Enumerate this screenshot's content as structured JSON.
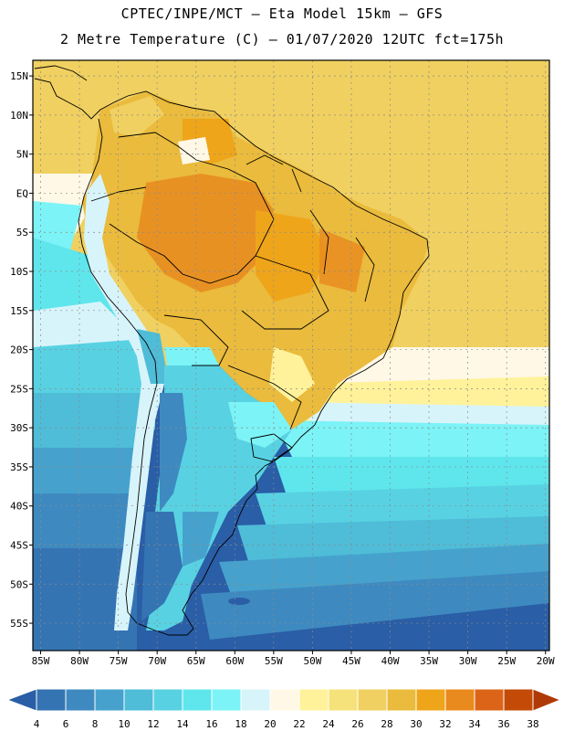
{
  "header": {
    "line1": "CPTEC/INPE/MCT –  Eta Model 15km – GFS",
    "line2": "2 Metre Temperature (C) – 01/07/2020 12UTC fct=175h"
  },
  "map": {
    "lat_labels": [
      "15N",
      "10N",
      "5N",
      "EQ",
      "5S",
      "10S",
      "15S",
      "20S",
      "25S",
      "30S",
      "35S",
      "40S",
      "45S",
      "50S",
      "55S"
    ],
    "lon_labels": [
      "85W",
      "80W",
      "75W",
      "70W",
      "65W",
      "60W",
      "55W",
      "50W",
      "45W",
      "40W",
      "35W",
      "30W",
      "25W",
      "20W"
    ]
  },
  "colorbar": {
    "labels": [
      "4",
      "6",
      "8",
      "10",
      "12",
      "14",
      "16",
      "18",
      "20",
      "22",
      "24",
      "26",
      "28",
      "30",
      "32",
      "34",
      "36",
      "38"
    ],
    "colors": [
      "#2a5ea6",
      "#3574b3",
      "#3e8ac0",
      "#46a2cd",
      "#4fbcd8",
      "#58d2e2",
      "#5fe6ec",
      "#7cf3f6",
      "#d8f4fb",
      "#fff8e6",
      "#fff29a",
      "#f6e27a",
      "#f0d060",
      "#eabb3c",
      "#efa51a",
      "#e88a1e",
      "#dc6418",
      "#c44a08",
      "#b03a06"
    ]
  }
}
